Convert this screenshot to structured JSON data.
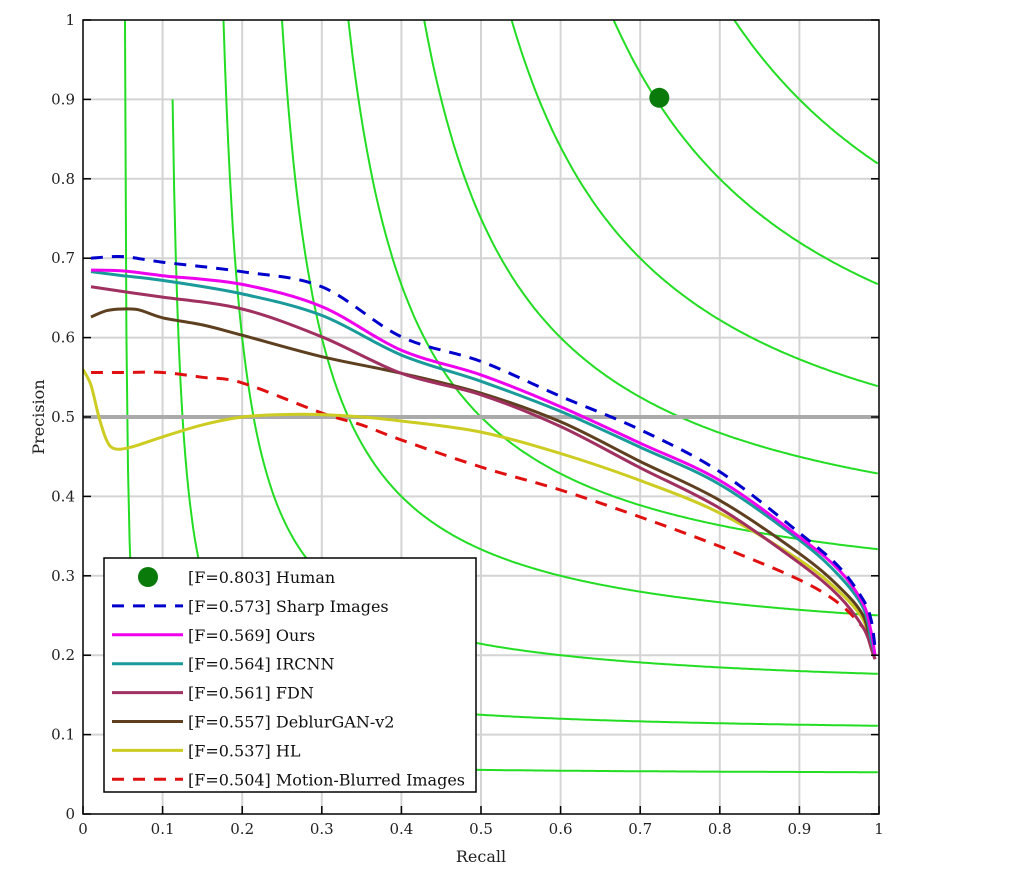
{
  "chart_data": {
    "type": "line",
    "title": "",
    "xlabel": "Recall",
    "ylabel": "Precision",
    "xlim": [
      0,
      1
    ],
    "ylim": [
      0,
      1
    ],
    "grid": true,
    "xticks": [
      "0",
      "0.1",
      "0.2",
      "0.3",
      "0.4",
      "0.5",
      "0.6",
      "0.7",
      "0.8",
      "0.9",
      "1"
    ],
    "yticks": [
      "0",
      "0.1",
      "0.2",
      "0.3",
      "0.4",
      "0.5",
      "0.6",
      "0.7",
      "0.8",
      "0.9",
      "1"
    ],
    "legend_position": "bottom-left",
    "iso_f_contours": [
      0.1,
      0.2,
      0.3,
      0.4,
      0.5,
      0.6,
      0.7,
      0.8,
      0.9
    ],
    "iso_f_color": "#22dd22",
    "reference_line": {
      "precision": 0.5,
      "color": "#aaaaaa"
    },
    "human_point": {
      "label": "[F=0.803] Human",
      "recall": 0.724,
      "precision": 0.902,
      "color": "#0a7a0a"
    },
    "series": [
      {
        "name": "[F=0.573] Sharp Images",
        "color": "#0000cc",
        "dash": true,
        "x": [
          0.01,
          0.05,
          0.1,
          0.2,
          0.3,
          0.4,
          0.5,
          0.6,
          0.7,
          0.8,
          0.9,
          0.95,
          0.98,
          0.99,
          0.995
        ],
        "y": [
          0.7,
          0.702,
          0.695,
          0.683,
          0.664,
          0.601,
          0.57,
          0.526,
          0.484,
          0.431,
          0.354,
          0.311,
          0.27,
          0.245,
          0.21
        ]
      },
      {
        "name": "[F=0.569] Ours",
        "color": "#ee00ee",
        "dash": false,
        "x": [
          0.01,
          0.05,
          0.1,
          0.2,
          0.3,
          0.4,
          0.5,
          0.6,
          0.7,
          0.8,
          0.9,
          0.95,
          0.98,
          0.99,
          0.995
        ],
        "y": [
          0.685,
          0.684,
          0.678,
          0.667,
          0.639,
          0.584,
          0.553,
          0.513,
          0.467,
          0.42,
          0.349,
          0.307,
          0.265,
          0.23,
          0.2
        ]
      },
      {
        "name": "[F=0.564] IRCNN",
        "color": "#1a9a9a",
        "dash": false,
        "x": [
          0.01,
          0.05,
          0.1,
          0.2,
          0.3,
          0.4,
          0.5,
          0.6,
          0.7,
          0.8,
          0.9,
          0.95,
          0.98,
          0.99,
          0.995
        ],
        "y": [
          0.683,
          0.678,
          0.672,
          0.655,
          0.628,
          0.578,
          0.545,
          0.507,
          0.462,
          0.415,
          0.345,
          0.3,
          0.26,
          0.22,
          0.2
        ]
      },
      {
        "name": "[F=0.561] FDN",
        "color": "#a03060",
        "dash": false,
        "x": [
          0.01,
          0.05,
          0.1,
          0.2,
          0.3,
          0.4,
          0.5,
          0.6,
          0.7,
          0.8,
          0.9,
          0.95,
          0.98,
          0.99,
          0.995
        ],
        "y": [
          0.664,
          0.658,
          0.651,
          0.636,
          0.601,
          0.555,
          0.528,
          0.488,
          0.436,
          0.385,
          0.316,
          0.274,
          0.235,
          0.21,
          0.195
        ]
      },
      {
        "name": "[F=0.557] DeblurGAN-v2",
        "color": "#5e4020",
        "dash": false,
        "x": [
          0.01,
          0.03,
          0.05,
          0.07,
          0.1,
          0.15,
          0.2,
          0.3,
          0.4,
          0.5,
          0.6,
          0.7,
          0.8,
          0.9,
          0.95,
          0.98,
          0.99,
          0.995
        ],
        "y": [
          0.626,
          0.634,
          0.636,
          0.635,
          0.625,
          0.616,
          0.603,
          0.576,
          0.555,
          0.53,
          0.494,
          0.444,
          0.395,
          0.328,
          0.286,
          0.25,
          0.21,
          0.195
        ]
      },
      {
        "name": "[F=0.537] HL",
        "color": "#cccc22",
        "dash": false,
        "x": [
          0.0,
          0.01,
          0.02,
          0.03,
          0.04,
          0.06,
          0.1,
          0.15,
          0.2,
          0.25,
          0.3,
          0.35,
          0.4,
          0.5,
          0.6,
          0.7,
          0.8,
          0.9,
          0.95,
          0.98,
          0.99,
          0.995
        ],
        "y": [
          0.56,
          0.54,
          0.5,
          0.47,
          0.46,
          0.462,
          0.475,
          0.49,
          0.5,
          0.503,
          0.503,
          0.5,
          0.495,
          0.481,
          0.454,
          0.42,
          0.379,
          0.32,
          0.28,
          0.245,
          0.21,
          0.2
        ]
      },
      {
        "name": "[F=0.504] Motion-Blurred Images",
        "color": "#e01010",
        "dash": true,
        "x": [
          0.01,
          0.05,
          0.1,
          0.15,
          0.2,
          0.3,
          0.35,
          0.4,
          0.5,
          0.6,
          0.7,
          0.8,
          0.9,
          0.95,
          0.98
        ],
        "y": [
          0.556,
          0.556,
          0.556,
          0.55,
          0.543,
          0.505,
          0.49,
          0.471,
          0.437,
          0.408,
          0.374,
          0.337,
          0.295,
          0.265,
          0.235
        ]
      }
    ]
  }
}
